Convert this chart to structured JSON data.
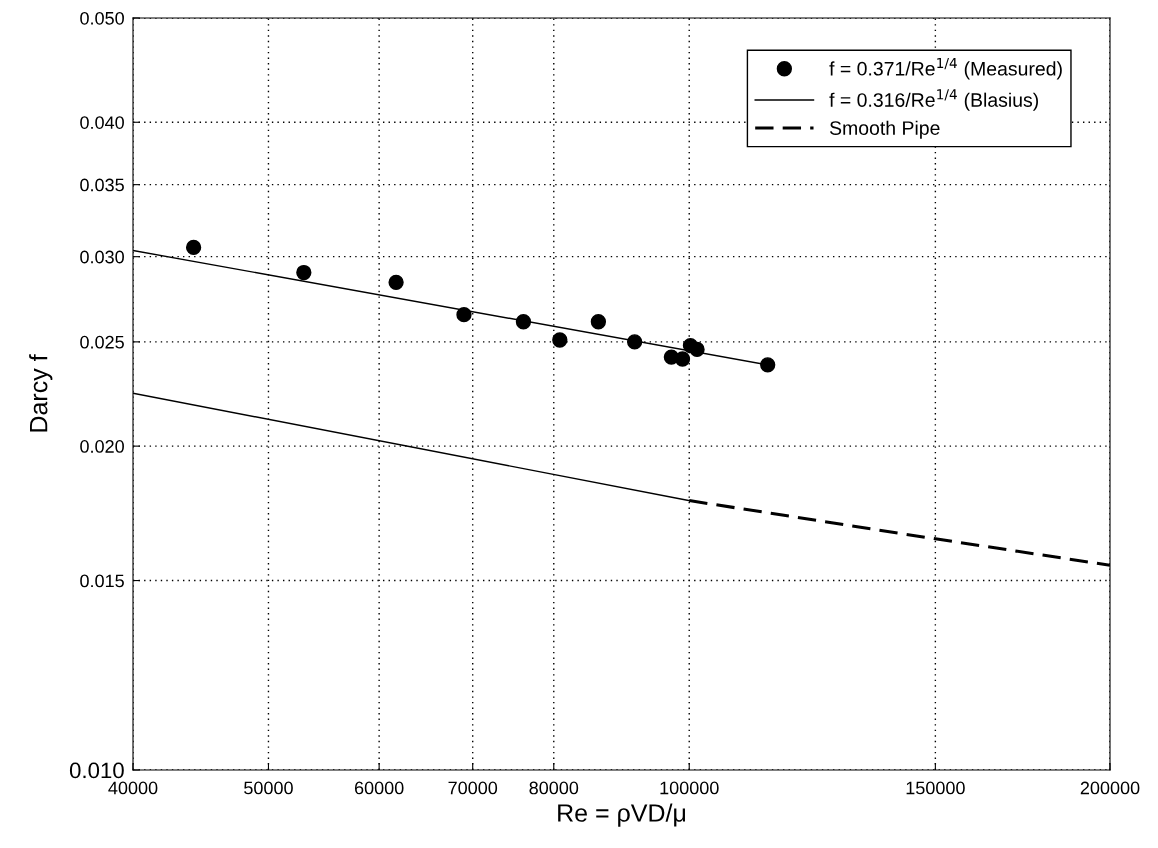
{
  "chart_data": {
    "type": "scatter",
    "xlabel": "Re = ρVD/μ",
    "ylabel": "Darcy f",
    "log": "xy",
    "xlim": [
      40000,
      200000
    ],
    "ylim": [
      0.01,
      0.05
    ],
    "xticks": [
      40000,
      50000,
      60000,
      70000,
      80000,
      100000,
      150000,
      200000
    ],
    "yticks": [
      {
        "value": 0.01,
        "label": "0.010"
      },
      {
        "value": 0.015,
        "label": "0.015"
      },
      {
        "value": 0.02,
        "label": "0.020"
      },
      {
        "value": 0.025,
        "label": "0.025"
      },
      {
        "value": 0.03,
        "label": "0.030"
      },
      {
        "value": 0.035,
        "label": "0.035"
      },
      {
        "value": 0.04,
        "label": "0.040"
      },
      {
        "value": 0.05,
        "label": "0.050"
      }
    ],
    "grid": true,
    "legend": "top right",
    "series": [
      {
        "name": "f = 0.371/Re$^{1/4}$ (Measured)",
        "marker": "circle",
        "color": "#000000",
        "x": [
          44200,
          53000,
          61700,
          69000,
          76100,
          80800,
          86100,
          91400,
          97100,
          98900,
          100200,
          101300,
          113800
        ],
        "values": [
          0.0306,
          0.029,
          0.0284,
          0.0265,
          0.0261,
          0.0251,
          0.0261,
          0.025,
          0.0242,
          0.0241,
          0.0248,
          0.0246,
          0.0238
        ]
      },
      {
        "type": "line",
        "line_style": "solid",
        "color": "#000000",
        "x": [
          40000,
          113800
        ],
        "values": [
          0.0304,
          0.0238
        ]
      },
      {
        "name": "f = 0.316/Re$^{1/4}$ (Blasius)",
        "type": "line",
        "line_style": "solid",
        "color": "#000000",
        "x": [
          40000,
          100000
        ],
        "values": [
          0.0224,
          0.0178
        ]
      },
      {
        "name": "Smooth Pipe",
        "type": "line",
        "line_style": "dashed",
        "color": "#000000",
        "x": [
          100000,
          150000,
          200000
        ],
        "values": [
          0.0178,
          0.0164,
          0.0155
        ]
      }
    ]
  }
}
